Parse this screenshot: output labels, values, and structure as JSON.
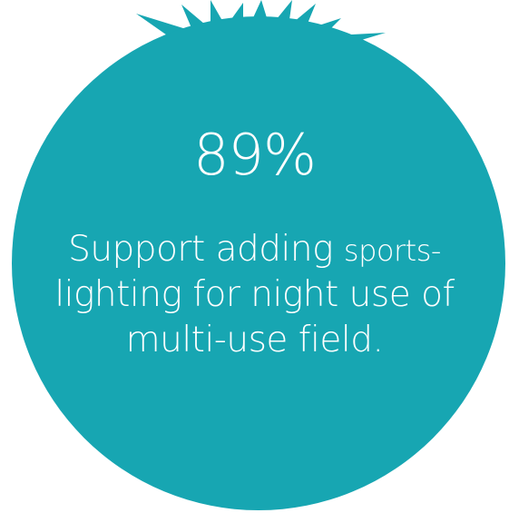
{
  "colors": {
    "circle": "#17a6b2",
    "text": "#ffffff"
  },
  "stat": {
    "value": "89%"
  },
  "caption": {
    "line1_a": "Support adding ",
    "line1_b": "sports-",
    "line2": "lighting for night use of",
    "line3": "multi-use field."
  },
  "decoration": {
    "icon": "starburst-rays-icon"
  }
}
